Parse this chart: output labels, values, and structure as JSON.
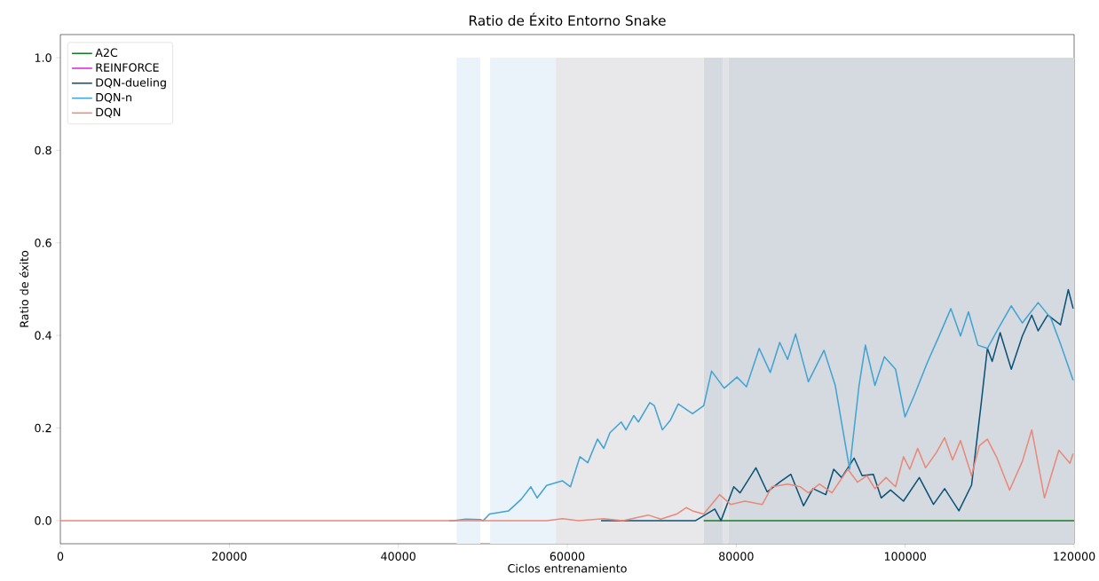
{
  "chart_data": {
    "type": "line",
    "title": "Ratio de Éxito Entorno Snake",
    "xlabel": "Ciclos entrenamiento",
    "ylabel": "Ratio de éxito",
    "xlim": [
      0,
      120000
    ],
    "ylim": [
      -0.05,
      1.05
    ],
    "xticks": [
      0,
      20000,
      40000,
      60000,
      80000,
      100000,
      120000
    ],
    "yticks": [
      {
        "value": 0,
        "label": "0.0"
      },
      {
        "value": 0.2,
        "label": "0.2"
      },
      {
        "value": 0.4,
        "label": "0.4"
      },
      {
        "value": 0.6,
        "label": "0.6"
      },
      {
        "value": 0.8,
        "label": "0.8"
      },
      {
        "value": 1.0,
        "label": "1.0"
      }
    ],
    "grid": false,
    "legend": "top left",
    "marker": "none",
    "line_style": "solid",
    "bands": [
      {
        "axis": "x",
        "from": 46900,
        "to": 49700,
        "color": "#eaf3f9"
      },
      {
        "axis": "x",
        "from": 50870,
        "to": 58650,
        "color": "#eaf3f9"
      },
      {
        "axis": "x",
        "from": 58650,
        "to": 76150,
        "color": "#e8e8eb"
      },
      {
        "axis": "x",
        "from": 76150,
        "to": 78400,
        "color": "#d5dae1"
      },
      {
        "axis": "x",
        "from": 78400,
        "to": 79100,
        "color": "#e0e2e6"
      },
      {
        "axis": "x",
        "from": 79100,
        "to": 120000,
        "color": "#d5dae1"
      }
    ],
    "series": [
      {
        "name": "A2C",
        "color": "#177a24",
        "x": [
          76150,
          120000
        ],
        "values": [
          0,
          0
        ]
      },
      {
        "name": "REINFORCE",
        "color": "#d62ad6"
      },
      {
        "name": "DQN-dueling",
        "color": "#0b5276",
        "x": [
          64000,
          75200,
          77460,
          78200,
          79710,
          80460,
          82330,
          83660,
          85130,
          86470,
          87970,
          89090,
          90600,
          91540,
          92480,
          93960,
          94900,
          96230,
          97160,
          98270,
          99800,
          101670,
          103350,
          104670,
          106360,
          107860,
          108990,
          109730,
          110300,
          111240,
          112560,
          113870,
          114980,
          115740,
          116870,
          118380,
          119310,
          119880
        ],
        "values": [
          0,
          0,
          0.025,
          0,
          0.073,
          0.06,
          0.114,
          0.062,
          0.083,
          0.1,
          0.032,
          0.069,
          0.056,
          0.111,
          0.093,
          0.135,
          0.097,
          0.1,
          0.049,
          0.066,
          0.042,
          0.093,
          0.035,
          0.069,
          0.021,
          0.077,
          0.252,
          0.372,
          0.344,
          0.406,
          0.327,
          0.399,
          0.444,
          0.41,
          0.444,
          0.423,
          0.499,
          0.458
        ]
      },
      {
        "name": "DQN-n",
        "color": "#42a3d3",
        "x": [
          46000,
          46500,
          48000,
          49700,
          50060,
          50800,
          53060,
          54550,
          55690,
          56440,
          57560,
          59440,
          60380,
          61500,
          62430,
          63580,
          64320,
          65060,
          66380,
          66950,
          67880,
          68420,
          69770,
          70310,
          71260,
          72210,
          73140,
          74830,
          76150,
          77080,
          78580,
          80090,
          81210,
          82720,
          84030,
          85150,
          86080,
          87030,
          88540,
          90390,
          91720,
          93420,
          94540,
          95290,
          96420,
          97540,
          98860,
          99980,
          101110,
          102610,
          104110,
          105410,
          106550,
          107490,
          108610,
          109730,
          111050,
          112550,
          113870,
          115740,
          117250,
          118380,
          119880
        ],
        "values": [
          0,
          0,
          0.003,
          0.002,
          0,
          0.014,
          0.021,
          0.046,
          0.073,
          0.049,
          0.076,
          0.086,
          0.073,
          0.138,
          0.125,
          0.176,
          0.156,
          0.19,
          0.213,
          0.196,
          0.227,
          0.213,
          0.255,
          0.248,
          0.196,
          0.217,
          0.252,
          0.231,
          0.248,
          0.323,
          0.286,
          0.31,
          0.289,
          0.372,
          0.32,
          0.385,
          0.348,
          0.403,
          0.3,
          0.368,
          0.292,
          0.111,
          0.292,
          0.379,
          0.292,
          0.354,
          0.327,
          0.224,
          0.272,
          0.341,
          0.403,
          0.458,
          0.399,
          0.451,
          0.379,
          0.372,
          0.416,
          0.464,
          0.427,
          0.471,
          0.437,
          0.382,
          0.303
        ]
      },
      {
        "name": "DQN",
        "color": "#e8897a",
        "x": [
          0,
          57560,
          59440,
          61320,
          64320,
          66570,
          69580,
          71080,
          72940,
          74080,
          74830,
          76150,
          78030,
          79340,
          81020,
          83090,
          84220,
          86080,
          87590,
          88540,
          89850,
          91330,
          93220,
          94350,
          95470,
          96420,
          97730,
          98860,
          99800,
          100540,
          101480,
          102420,
          103730,
          104670,
          105610,
          106550,
          107860,
          108780,
          109730,
          110870,
          112360,
          113870,
          114980,
          116490,
          118190,
          119500,
          119880
        ],
        "values": [
          0,
          0,
          0.004,
          0,
          0.004,
          0,
          0.012,
          0.003,
          0.014,
          0.028,
          0.021,
          0.014,
          0.056,
          0.035,
          0.042,
          0.035,
          0.073,
          0.079,
          0.073,
          0.06,
          0.079,
          0.06,
          0.111,
          0.083,
          0.097,
          0.069,
          0.093,
          0.073,
          0.138,
          0.111,
          0.156,
          0.114,
          0.148,
          0.179,
          0.131,
          0.173,
          0.097,
          0.162,
          0.176,
          0.135,
          0.066,
          0.128,
          0.196,
          0.049,
          0.152,
          0.124,
          0.145
        ]
      }
    ]
  }
}
